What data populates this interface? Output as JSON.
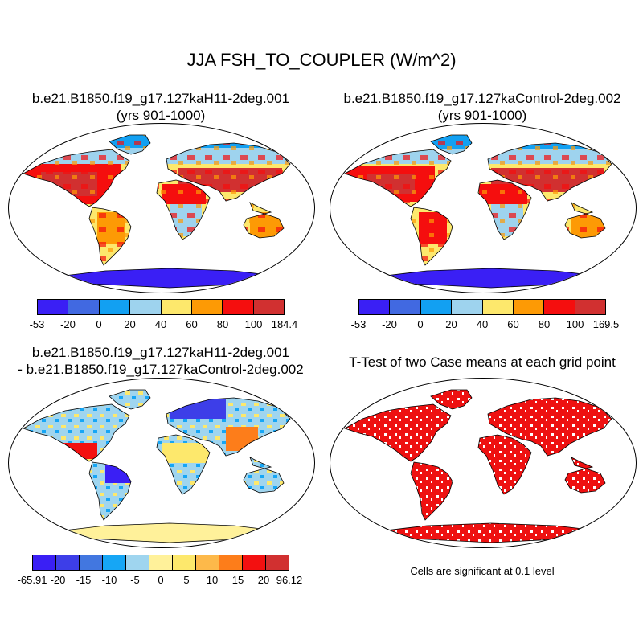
{
  "main_title": "JJA FSH_TO_COUPLER (W/m^2)",
  "panels": {
    "case1": {
      "title_line1": "b.e21.B1850.f19_g17.127kaH11-2deg.001",
      "title_line2": "(yrs 901-1000)"
    },
    "case2": {
      "title_line1": "b.e21.B1850.f19_g17.127kaControl-2deg.002",
      "title_line2": "(yrs 901-1000)"
    },
    "diff": {
      "title_line1": "b.e21.B1850.f19_g17.127kaH11-2deg.001",
      "title_line2": "- b.e21.B1850.f19_g17.127kaControl-2deg.002"
    },
    "ttest": {
      "title_line1": "T-Test of two Case means at each grid point",
      "note": "Cells are significant at 0.1 level"
    }
  },
  "colorbars": {
    "case1": {
      "colors": [
        "#3a1ff5",
        "#4169e1",
        "#12a0f2",
        "#9ed3ee",
        "#fde86c",
        "#fd9a05",
        "#f50e0e",
        "#d13030"
      ],
      "labels": [
        "-53",
        "-20",
        "0",
        "20",
        "40",
        "60",
        "80",
        "100",
        "184.4"
      ]
    },
    "case2": {
      "colors": [
        "#3a1ff5",
        "#4169e1",
        "#12a0f2",
        "#9ed3ee",
        "#fde86c",
        "#fd9a05",
        "#f50e0e",
        "#d13030"
      ],
      "labels": [
        "-53",
        "-20",
        "0",
        "20",
        "40",
        "60",
        "80",
        "100",
        "169.5"
      ]
    },
    "diff": {
      "colors": [
        "#3a1ff5",
        "#3d3ee8",
        "#4277e0",
        "#16a6f5",
        "#9fd5ef",
        "#fff19a",
        "#fde86c",
        "#fdb94a",
        "#fd7d1a",
        "#f31010",
        "#d13030"
      ],
      "labels": [
        "-65.91",
        "-20",
        "-15",
        "-10",
        "-5",
        "0",
        "5",
        "10",
        "15",
        "20",
        "96.12"
      ]
    }
  },
  "colors": {
    "significant": "#ee1111"
  }
}
